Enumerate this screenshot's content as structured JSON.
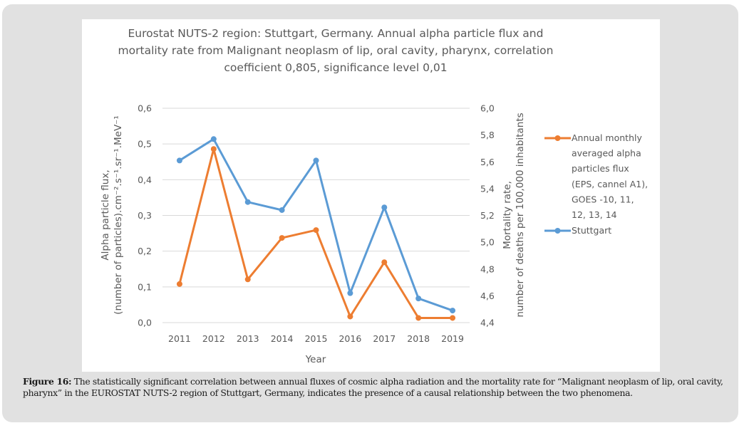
{
  "chart_data": {
    "type": "line",
    "title": [
      "Eurostat NUTS-2 region: Stuttgart, Germany. Annual alpha particle flux and",
      "mortality rate from Malignant neoplasm of lip, oral cavity, pharynx, correlation",
      "coefficient 0,805, significance level 0,01"
    ],
    "xlabel": "Year",
    "ylabel_left": [
      "Alpha particle flux,",
      "(number of particles).cm⁻².s⁻¹.sr⁻¹.MeV⁻¹"
    ],
    "ylabel_right": [
      "Mortality rate,",
      "number of deaths per 100,000 inhabitants"
    ],
    "categories": [
      "2011",
      "2012",
      "2013",
      "2014",
      "2015",
      "2016",
      "2017",
      "2018",
      "2019"
    ],
    "ylim_left": [
      0.0,
      0.6
    ],
    "yticks_left": [
      "0,0",
      "0,1",
      "0,2",
      "0,3",
      "0,4",
      "0,5",
      "0,6"
    ],
    "ylim_right": [
      4.4,
      6.0
    ],
    "yticks_right": [
      "4,4",
      "4,6",
      "4,8",
      "5,0",
      "5,2",
      "5,4",
      "5,6",
      "5,8",
      "6,0"
    ],
    "grid": true,
    "legend_position": "right",
    "series": [
      {
        "name": "Annual monthly averaged alpha particles flux (EPS, cannel A1), GOES -10, 11, 12, 13, 14",
        "legend_lines": [
          "Annual monthly",
          "averaged alpha",
          "particles flux",
          "(EPS, cannel A1),",
          "GOES -10, 11,",
          "12, 13, 14"
        ],
        "axis": "left",
        "color": "#ED7D31",
        "values": [
          0.108,
          0.486,
          0.121,
          0.237,
          0.259,
          0.017,
          0.169,
          0.013,
          0.013
        ]
      },
      {
        "name": "Stuttgart",
        "legend_lines": [
          "Stuttgart"
        ],
        "axis": "right",
        "color": "#5B9BD5",
        "values": [
          5.61,
          5.77,
          5.3,
          5.24,
          5.61,
          4.62,
          5.26,
          4.58,
          4.49
        ]
      }
    ]
  },
  "caption": {
    "label": "Figure 16:",
    "text": " The statistically significant correlation between annual fluxes of cosmic alpha radiation and the mortality rate for “Malignant neoplasm of lip, oral cavity, pharynx” in the EUROSTAT NUTS-2 region of Stuttgart, Germany, indicates the presence of a causal relationship between the two phenomena."
  }
}
